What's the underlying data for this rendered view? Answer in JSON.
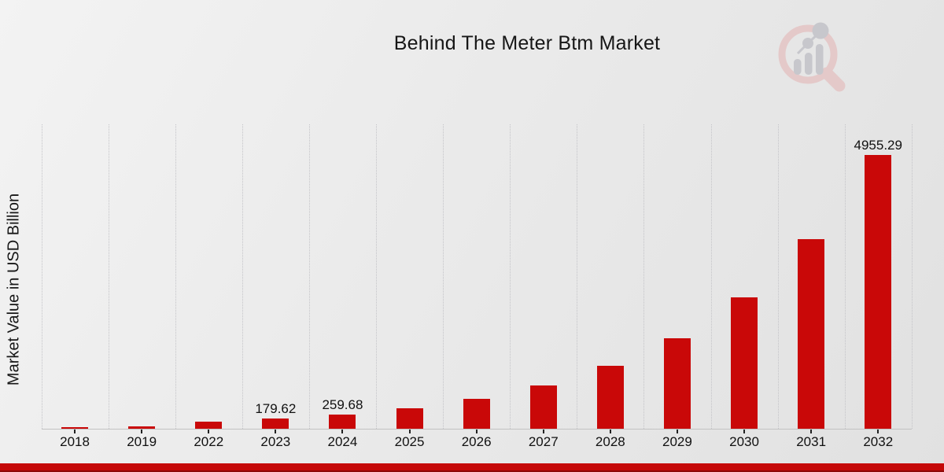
{
  "page": {
    "title": "Behind The Meter Btm Market"
  },
  "y_axis": {
    "label": "Market Value in USD Billion"
  },
  "chart_data": {
    "type": "bar",
    "title": "Behind The Meter Btm Market",
    "xlabel": "",
    "ylabel": "Market Value in USD Billion",
    "categories": [
      "2018",
      "2019",
      "2022",
      "2023",
      "2024",
      "2025",
      "2026",
      "2027",
      "2028",
      "2029",
      "2030",
      "2031",
      "2032"
    ],
    "values": [
      28.4,
      41.1,
      124.2,
      179.62,
      259.68,
      375.4,
      542.8,
      784.7,
      1134.5,
      1640.1,
      2371.1,
      3427.9,
      4955.29
    ],
    "data_labels": [
      null,
      null,
      null,
      "179.62",
      "259.68",
      null,
      null,
      null,
      null,
      null,
      null,
      null,
      "4955.29"
    ],
    "ylim": [
      0,
      5480
    ],
    "grid": "vertical-dotted",
    "legend": "none",
    "bar_color": "#c90808"
  },
  "colors": {
    "bar": "#c90808",
    "footer_band": "#c50808",
    "footer_band_dark": "#8d0808",
    "gridline": "#c4c4c8",
    "axis_line": "#c2c2c2",
    "tick": "#222222",
    "text": "#161616",
    "logo_ring": "#e4c9c9",
    "logo_bars": "#c7c7cc"
  },
  "icons": {
    "logo": "magnifier-bar-chart-logo"
  }
}
